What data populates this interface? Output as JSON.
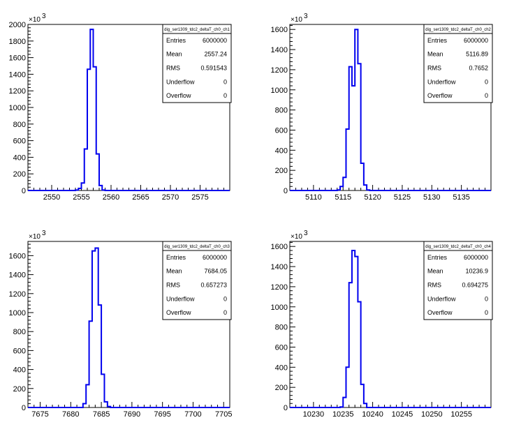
{
  "chart_data": [
    {
      "type": "bar",
      "hist_name": "dig_ser1309_tdc2_deltaT_ch0_ch1",
      "multiplier": "×10",
      "multiplier_exp": "3",
      "xlim": [
        2546,
        2580
      ],
      "ylim": [
        0,
        2000
      ],
      "xticks": [
        2550,
        2555,
        2560,
        2565,
        2570,
        2575
      ],
      "yticks": [
        0,
        200,
        400,
        600,
        800,
        1000,
        1200,
        1400,
        1600,
        1800,
        2000
      ],
      "ytick_labels": [
        "0",
        "200",
        "400",
        "600",
        "800",
        "1000",
        "1200",
        "1400",
        "1600",
        "1800",
        "2000"
      ],
      "bin_width": 0.5,
      "bins_x": [
        2554.0,
        2554.5,
        2555.0,
        2555.5,
        2556.0,
        2556.5,
        2557.0,
        2557.5,
        2558.0,
        2558.5
      ],
      "bins_y": [
        5,
        25,
        90,
        500,
        1460,
        1940,
        1490,
        440,
        60,
        5
      ],
      "stats": [
        {
          "label": "Entries",
          "value": "6000000"
        },
        {
          "label": "Mean",
          "value": "2557.24"
        },
        {
          "label": "RMS",
          "value": "0.591543"
        },
        {
          "label": "Underflow",
          "value": "0"
        },
        {
          "label": "Overflow",
          "value": "0"
        }
      ],
      "line_color": "#0000ee"
    },
    {
      "type": "bar",
      "hist_name": "dig_ser1309_tdc2_deltaT_ch0_ch2",
      "multiplier": "×10",
      "multiplier_exp": "3",
      "xlim": [
        5106,
        5140
      ],
      "ylim": [
        0,
        1650
      ],
      "xticks": [
        5110,
        5115,
        5120,
        5125,
        5130,
        5135
      ],
      "yticks": [
        0,
        200,
        400,
        600,
        800,
        1000,
        1200,
        1400,
        1600
      ],
      "ytick_labels": [
        "0",
        "200",
        "400",
        "600",
        "800",
        "1000",
        "1200",
        "1400",
        "1600"
      ],
      "bin_width": 0.5,
      "bins_x": [
        5114.0,
        5114.5,
        5115.0,
        5115.5,
        5116.0,
        5116.5,
        5117.0,
        5117.5,
        5118.0,
        5118.5,
        5119.0
      ],
      "bins_y": [
        5,
        40,
        130,
        610,
        1230,
        1040,
        1600,
        1260,
        270,
        55,
        5
      ],
      "stats": [
        {
          "label": "Entries",
          "value": "6000000"
        },
        {
          "label": "Mean",
          "value": "5116.89"
        },
        {
          "label": "RMS",
          "value": "0.7652"
        },
        {
          "label": "Underflow",
          "value": "0"
        },
        {
          "label": "Overflow",
          "value": "0"
        }
      ],
      "line_color": "#0000ee"
    },
    {
      "type": "bar",
      "hist_name": "dig_ser1309_tdc2_deltaT_ch0_ch3",
      "multiplier": "×10",
      "multiplier_exp": "3",
      "xlim": [
        7673,
        7706
      ],
      "ylim": [
        0,
        1750
      ],
      "xticks": [
        7675,
        7680,
        7685,
        7690,
        7695,
        7700,
        7705
      ],
      "yticks": [
        0,
        200,
        400,
        600,
        800,
        1000,
        1200,
        1400,
        1600
      ],
      "ytick_labels": [
        "0",
        "200",
        "400",
        "600",
        "800",
        "1000",
        "1200",
        "1400",
        "1600"
      ],
      "bin_width": 0.5,
      "bins_x": [
        7682.0,
        7682.5,
        7683.0,
        7683.5,
        7684.0,
        7684.5,
        7685.0,
        7685.5,
        7686.0
      ],
      "bins_y": [
        40,
        240,
        910,
        1650,
        1680,
        1080,
        350,
        60,
        10
      ],
      "stats": [
        {
          "label": "Entries",
          "value": "6000000"
        },
        {
          "label": "Mean",
          "value": "7684.05"
        },
        {
          "label": "RMS",
          "value": "0.657273"
        },
        {
          "label": "Underflow",
          "value": "0"
        },
        {
          "label": "Overflow",
          "value": "0"
        }
      ],
      "line_color": "#0000ee"
    },
    {
      "type": "bar",
      "hist_name": "dig_ser1309_tdc2_deltaT_ch0_ch4",
      "multiplier": "×10",
      "multiplier_exp": "3",
      "xlim": [
        10226,
        10260
      ],
      "ylim": [
        0,
        1650
      ],
      "xticks": [
        10230,
        10235,
        10240,
        10245,
        10250,
        10255
      ],
      "yticks": [
        0,
        200,
        400,
        600,
        800,
        1000,
        1200,
        1400,
        1600
      ],
      "ytick_labels": [
        "0",
        "200",
        "400",
        "600",
        "800",
        "1000",
        "1200",
        "1400",
        "1600"
      ],
      "bin_width": 0.5,
      "bins_x": [
        10234.5,
        10235.0,
        10235.5,
        10236.0,
        10236.5,
        10237.0,
        10237.5,
        10238.0,
        10238.5
      ],
      "bins_y": [
        5,
        100,
        400,
        1240,
        1560,
        1500,
        1050,
        230,
        40
      ],
      "stats": [
        {
          "label": "Entries",
          "value": "6000000"
        },
        {
          "label": "Mean",
          "value": "10236.9"
        },
        {
          "label": "RMS",
          "value": "0.694275"
        },
        {
          "label": "Underflow",
          "value": "0"
        },
        {
          "label": "Overflow",
          "value": "0"
        }
      ],
      "line_color": "#0000ee"
    }
  ]
}
